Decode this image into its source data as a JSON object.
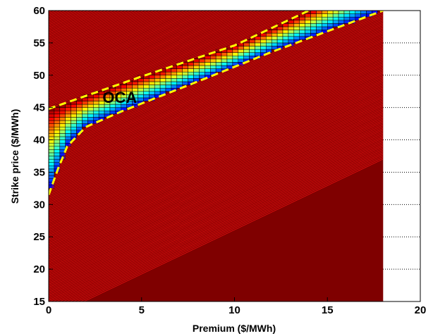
{
  "chart_data": {
    "type": "heatmap",
    "title": "",
    "xlabel": "Premium ($/MWh)",
    "ylabel": "Strike price ($/MWh)",
    "xlim": [
      0,
      20
    ],
    "ylim": [
      15,
      60
    ],
    "x_ticks": [
      "0",
      "5",
      "10",
      "15",
      "20"
    ],
    "y_ticks": [
      "15",
      "20",
      "25",
      "30",
      "35",
      "40",
      "45",
      "50",
      "55",
      "60"
    ],
    "grid": "dotted major grid outside data area",
    "data_x_range": [
      0,
      18
    ],
    "grid_cell_size": {
      "premium": 0.3,
      "strike": 0.5
    },
    "region": {
      "label": "OCA",
      "upper_boundary": [
        [
          0,
          44.8
        ],
        [
          5,
          49.8
        ],
        [
          10,
          54.6
        ],
        [
          14,
          60
        ]
      ],
      "lower_boundary": [
        [
          0,
          31.5
        ],
        [
          0.5,
          35.5
        ],
        [
          1,
          39
        ],
        [
          2,
          42
        ],
        [
          4,
          44.5
        ],
        [
          8,
          49
        ],
        [
          12,
          53.6
        ],
        [
          18,
          60
        ]
      ],
      "boundary_style": "dashed yellow"
    },
    "colors": {
      "background_cell": "#7f0000",
      "background_hatch": "#e81010",
      "boundary": "#ffff00",
      "colormap": "jet"
    }
  }
}
